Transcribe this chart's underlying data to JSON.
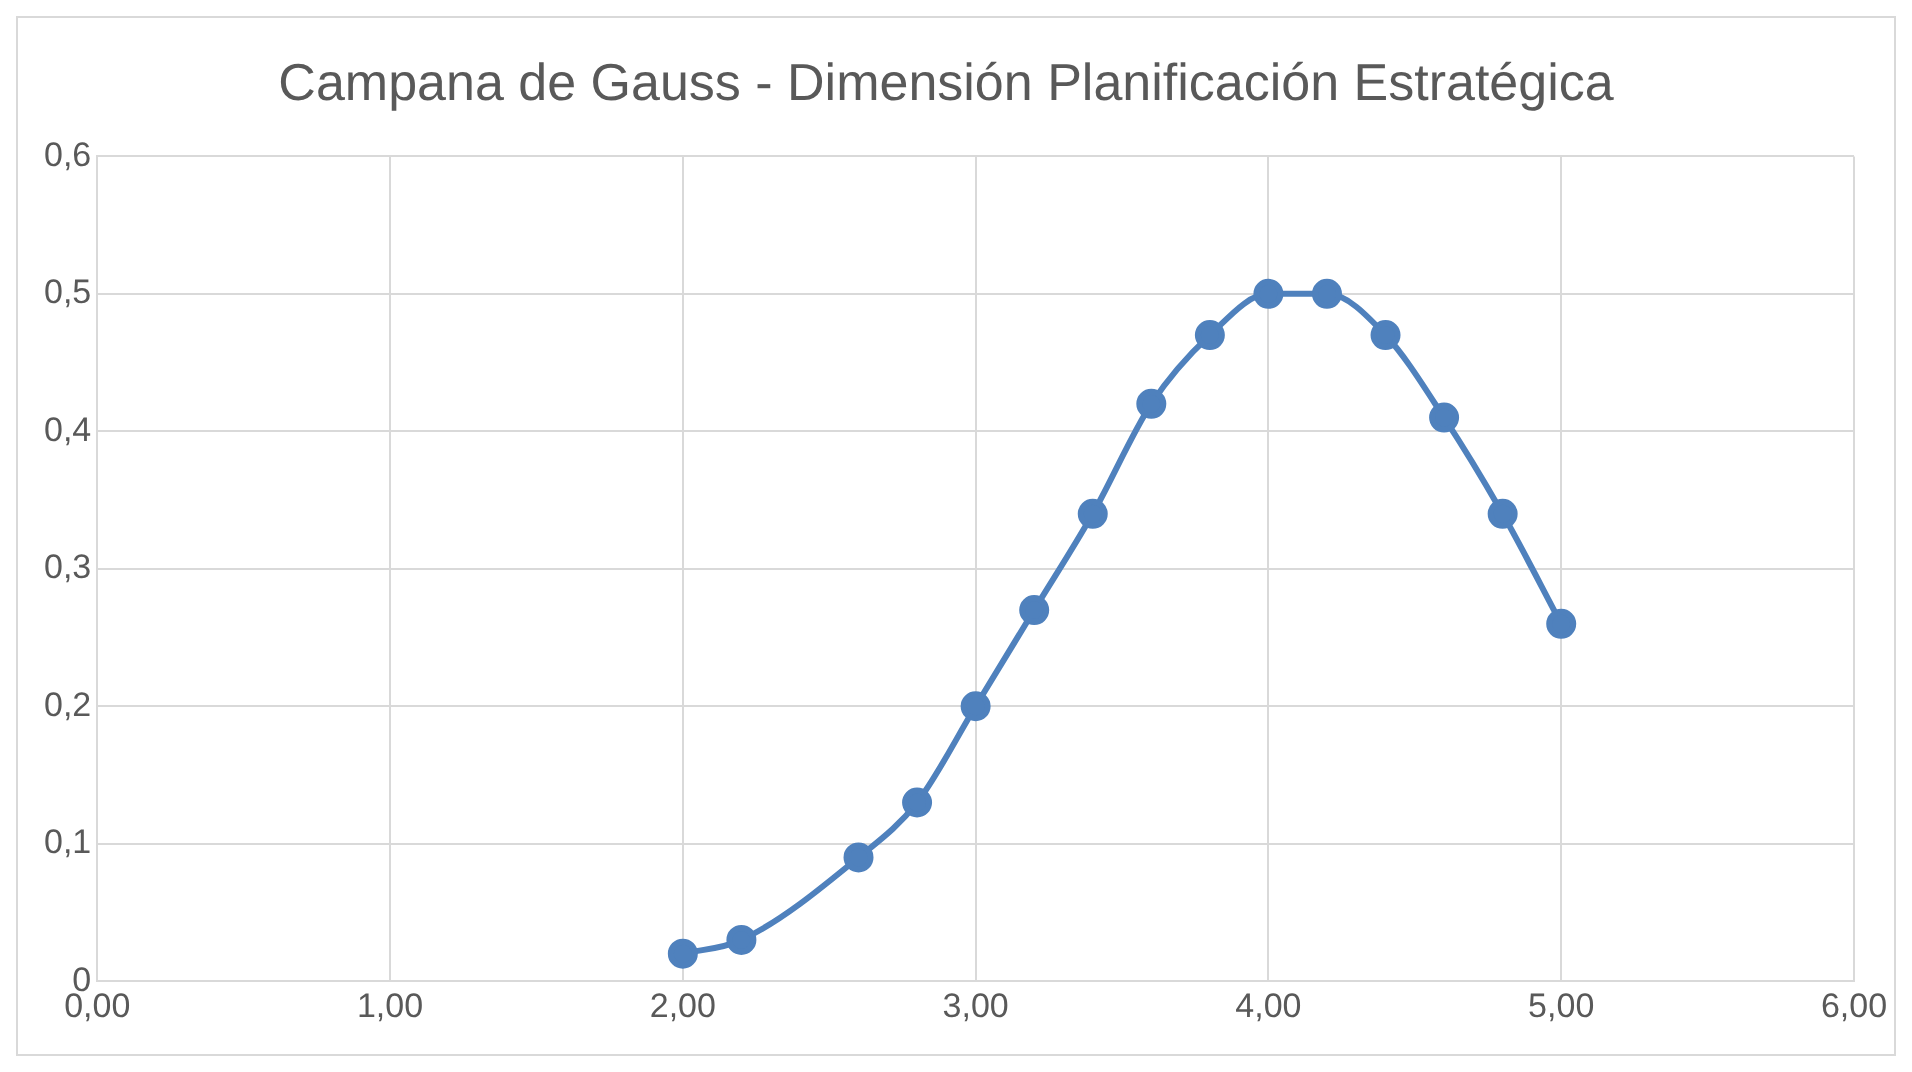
{
  "chart_data": {
    "type": "line",
    "title": "Campana de Gauss - Dimensión Planificación Estratégica",
    "x": [
      2.0,
      2.2,
      2.6,
      2.8,
      3.0,
      3.2,
      3.4,
      3.6,
      3.8,
      4.0,
      4.2,
      4.4,
      4.6,
      4.8,
      5.0
    ],
    "series": [
      {
        "color": "#4f81bd",
        "values": [
          0.02,
          0.03,
          0.09,
          0.13,
          0.2,
          0.27,
          0.34,
          0.42,
          0.47,
          0.5,
          0.5,
          0.47,
          0.41,
          0.34,
          0.26
        ]
      }
    ],
    "xlim": [
      0,
      6
    ],
    "xticks": [
      {
        "value": 0,
        "label": "0,00"
      },
      {
        "value": 1,
        "label": "1,00"
      },
      {
        "value": 2,
        "label": "2,00"
      },
      {
        "value": 3,
        "label": "3,00"
      },
      {
        "value": 4,
        "label": "4,00"
      },
      {
        "value": 5,
        "label": "5,00"
      },
      {
        "value": 6,
        "label": "6,00"
      }
    ],
    "ylim": [
      0,
      0.6
    ],
    "yticks": [
      0,
      {
        "value": 0.1,
        "label": "0,1"
      },
      {
        "value": 0.2,
        "label": "0,2"
      },
      {
        "value": 0.3,
        "label": "0,3"
      },
      {
        "value": 0.4,
        "label": "0,4"
      },
      {
        "value": 0.5,
        "label": "0,5"
      },
      {
        "value": 0.6,
        "label": "0,6"
      }
    ],
    "grid": true,
    "legend": false,
    "marker": "circle",
    "line_style": "solid"
  }
}
